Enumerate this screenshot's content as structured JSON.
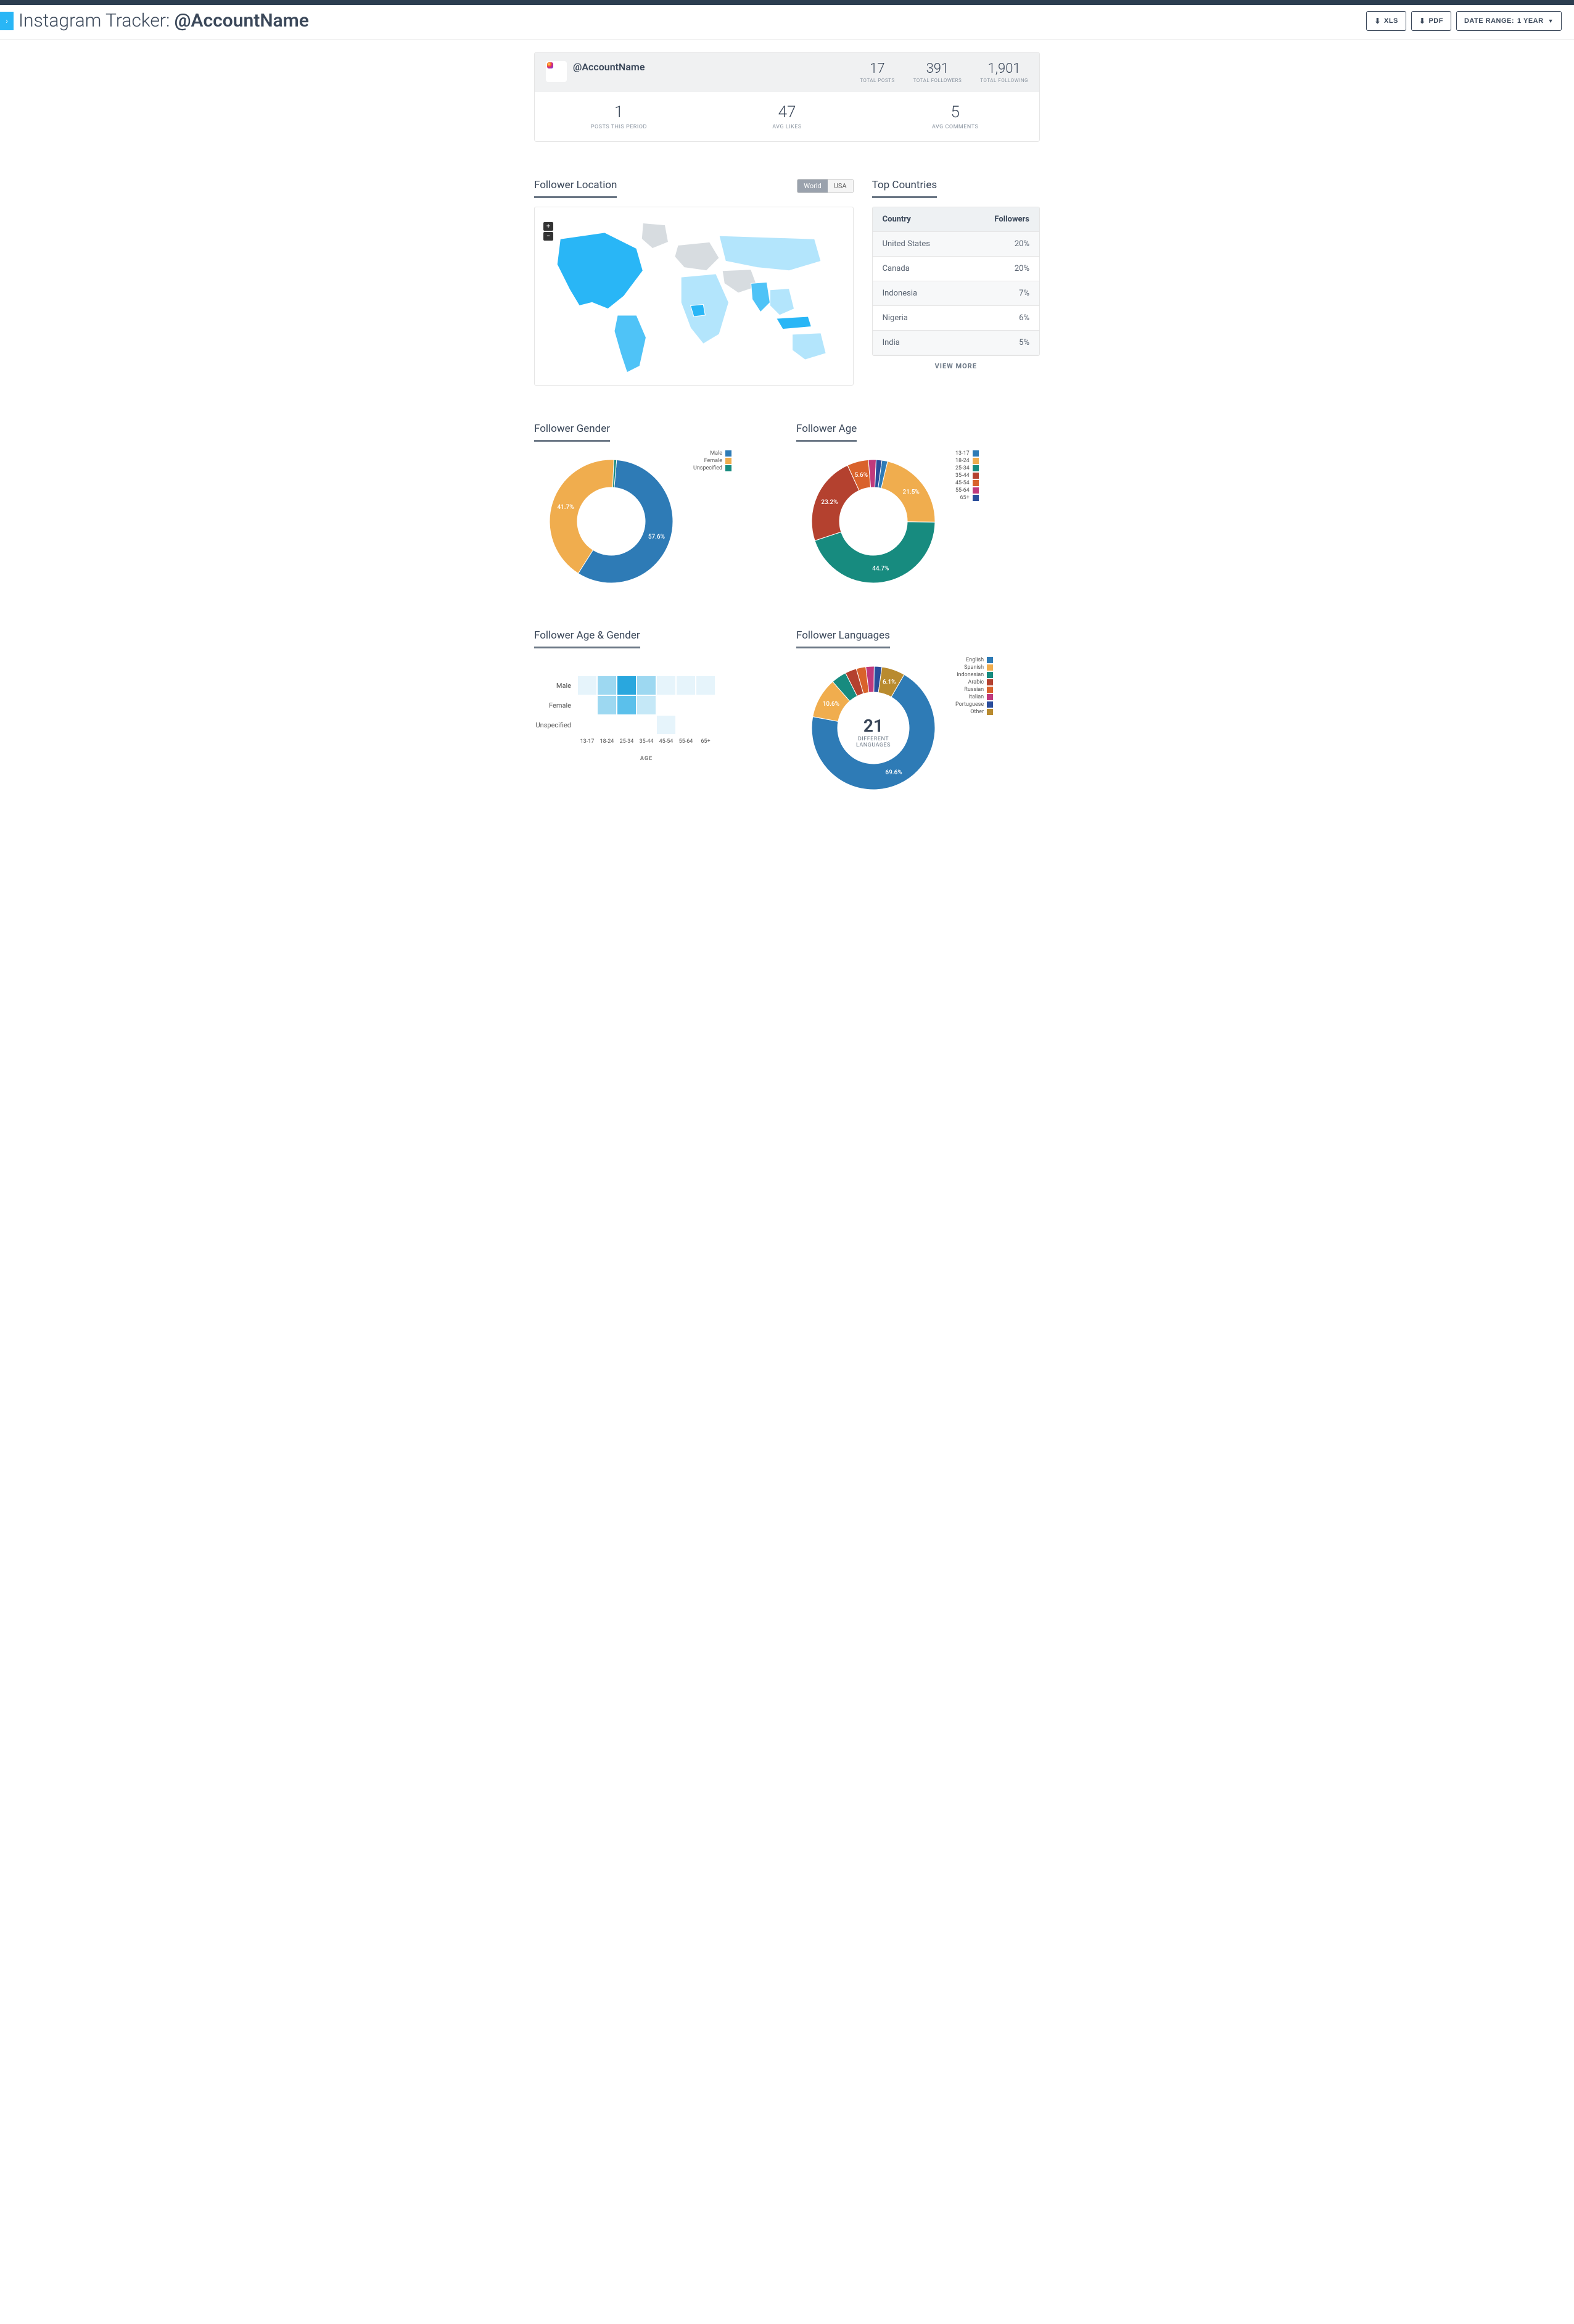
{
  "header": {
    "title_prefix": "Instagram Tracker:",
    "account_handle": "@AccountName",
    "xls_label": "XLS",
    "pdf_label": "PDF",
    "date_range_label": "DATE RANGE:",
    "date_range_value": "1 YEAR"
  },
  "summary": {
    "account_handle": "@AccountName",
    "top_stats": [
      {
        "value": "17",
        "label": "TOTAL POSTS"
      },
      {
        "value": "391",
        "label": "TOTAL FOLLOWERS"
      },
      {
        "value": "1,901",
        "label": "TOTAL FOLLOWING"
      }
    ],
    "bottom_stats": [
      {
        "value": "1",
        "label": "POSTS THIS PERIOD"
      },
      {
        "value": "47",
        "label": "AVG LIKES"
      },
      {
        "value": "5",
        "label": "AVG COMMENTS"
      }
    ]
  },
  "follower_location": {
    "title": "Follower Location",
    "toggle": {
      "active": "World",
      "inactive": "USA"
    },
    "map_colors": {
      "low": "#b3e5fc",
      "mid": "#4fc3f7",
      "high": "#29b6f6",
      "land": "#d7dce0",
      "stroke": "#ffffff"
    }
  },
  "top_countries": {
    "title": "Top Countries",
    "columns": [
      "Country",
      "Followers"
    ],
    "rows": [
      {
        "country": "United States",
        "followers": "20%"
      },
      {
        "country": "Canada",
        "followers": "20%"
      },
      {
        "country": "Indonesia",
        "followers": "7%"
      },
      {
        "country": "Nigeria",
        "followers": "6%"
      },
      {
        "country": "India",
        "followers": "5%"
      }
    ],
    "view_more": "VIEW MORE"
  },
  "gender": {
    "title": "Follower Gender",
    "type": "donut",
    "inner_radius": 55,
    "outer_radius": 100,
    "series": [
      {
        "label": "Male",
        "value": 57.6,
        "color": "#2e7bb6",
        "text": "57.6%"
      },
      {
        "label": "Female",
        "value": 41.7,
        "color": "#f0ad4e",
        "text": "41.7%"
      },
      {
        "label": "Unspecified",
        "value": 0.7,
        "color": "#178b7f",
        "text": ""
      }
    ]
  },
  "age": {
    "title": "Follower Age",
    "type": "donut",
    "inner_radius": 55,
    "outer_radius": 100,
    "series": [
      {
        "label": "13-17",
        "value": 1.5,
        "color": "#2e7bb6",
        "text": ""
      },
      {
        "label": "18-24",
        "value": 21.5,
        "color": "#f0ad4e",
        "text": "21.5%"
      },
      {
        "label": "25-34",
        "value": 44.7,
        "color": "#178b7f",
        "text": "44.7%"
      },
      {
        "label": "35-44",
        "value": 23.2,
        "color": "#b4412f",
        "text": "23.2%"
      },
      {
        "label": "45-54",
        "value": 5.6,
        "color": "#d9622b",
        "text": "5.6%"
      },
      {
        "label": "55-64",
        "value": 2.0,
        "color": "#c0397c",
        "text": ""
      },
      {
        "label": "65+",
        "value": 1.5,
        "color": "#2a4d9b",
        "text": ""
      }
    ]
  },
  "age_gender": {
    "title": "Follower Age & Gender",
    "type": "heatmap",
    "axis_title": "AGE",
    "y_labels": [
      "Male",
      "Female",
      "Unspecified"
    ],
    "x_labels": [
      "13-17",
      "18-24",
      "25-34",
      "35-44",
      "45-54",
      "55-64",
      "65+"
    ],
    "color_scale": [
      "#ffffff",
      "#e6f4fb",
      "#c5e8f7",
      "#9dd8f1",
      "#5bc0eb",
      "#29a7de"
    ],
    "grid": [
      [
        1,
        3,
        5,
        3,
        1,
        1,
        1
      ],
      [
        0,
        3,
        4,
        2,
        0,
        0,
        0
      ],
      [
        0,
        0,
        0,
        0,
        1,
        0,
        0
      ]
    ]
  },
  "languages": {
    "title": "Follower Languages",
    "type": "donut",
    "inner_radius": 58,
    "outer_radius": 100,
    "center_big": "21",
    "center_small_1": "DIFFERENT",
    "center_small_2": "LANGUAGES",
    "series": [
      {
        "label": "English",
        "value": 69.6,
        "color": "#2e7bb6",
        "text": "69.6%"
      },
      {
        "label": "Spanish",
        "value": 10.6,
        "color": "#f0ad4e",
        "text": "10.6%"
      },
      {
        "label": "Indonesian",
        "value": 4.0,
        "color": "#178b7f",
        "text": ""
      },
      {
        "label": "Arabic",
        "value": 3.0,
        "color": "#b4412f",
        "text": ""
      },
      {
        "label": "Russian",
        "value": 2.5,
        "color": "#d9622b",
        "text": ""
      },
      {
        "label": "Italian",
        "value": 2.2,
        "color": "#c0397c",
        "text": ""
      },
      {
        "label": "Portuguese",
        "value": 2.0,
        "color": "#2a4d9b",
        "text": ""
      },
      {
        "label": "Other",
        "value": 6.1,
        "color": "#b98b2f",
        "text": "6.1%"
      }
    ]
  }
}
